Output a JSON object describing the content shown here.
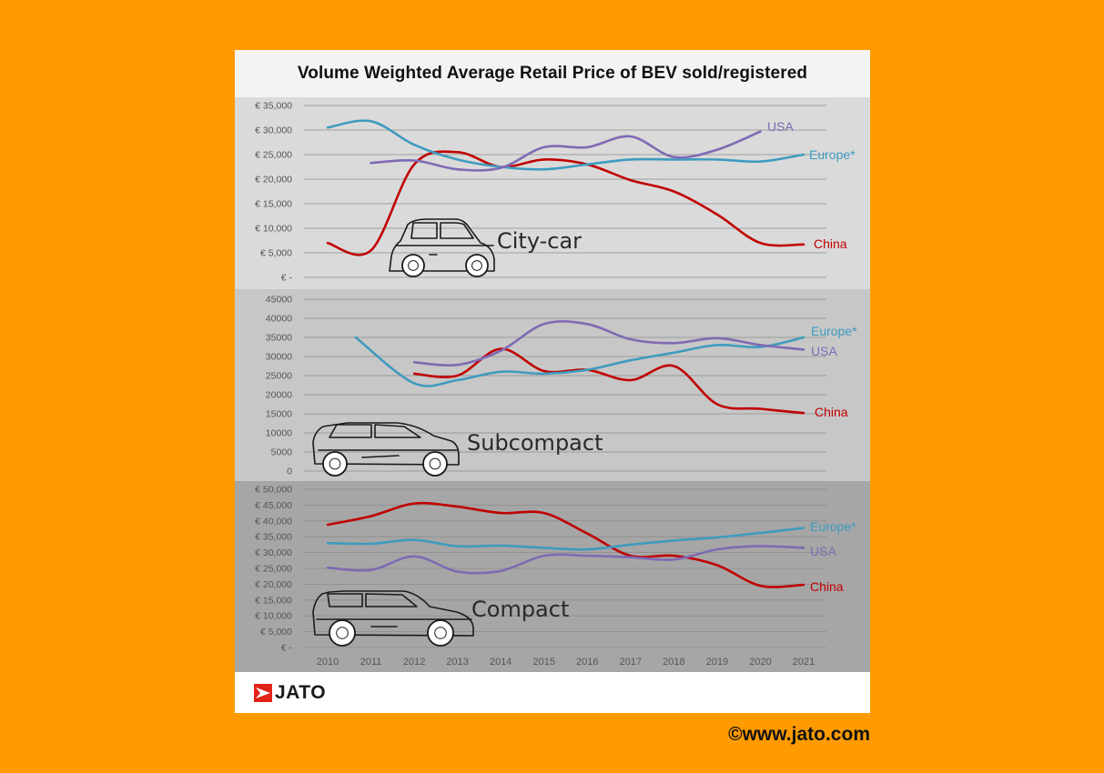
{
  "header": {
    "title": "Volume Weighted Average Retail Price of BEV sold/registered"
  },
  "footer": {
    "brand": "JATO",
    "website": "©www.jato.com"
  },
  "colors": {
    "background": "#ff9b00",
    "china": "#c00000",
    "europe": "#3f9bbf",
    "usa": "#7f6ab4"
  },
  "icons": [
    "jato-logo-icon",
    "city-car-icon",
    "subcompact-car-icon",
    "compact-car-icon"
  ],
  "chart_data": {
    "type": "line",
    "x": [
      2010,
      2011,
      2012,
      2013,
      2014,
      2015,
      2016,
      2017,
      2018,
      2019,
      2020,
      2021
    ],
    "x_tick_labels": [
      "2010",
      "2011",
      "2012",
      "2013",
      "2014",
      "2015",
      "2016",
      "2017",
      "2018",
      "2019",
      "2020",
      "2021"
    ],
    "panels": [
      {
        "segment": "City-car",
        "ylim": [
          0,
          35000
        ],
        "y_ticks": [
          0,
          5000,
          10000,
          15000,
          20000,
          25000,
          30000,
          35000
        ],
        "y_tick_labels": [
          "€ -",
          "€ 5,000",
          "€ 10,000",
          "€ 15,000",
          "€ 20,000",
          "€ 25,000",
          "€ 30,000",
          "€ 35,000"
        ],
        "series": [
          {
            "name": "China",
            "key": "china",
            "x": [
              2010,
              2011,
              2012,
              2013,
              2014,
              2015,
              2016,
              2017,
              2018,
              2019,
              2020,
              2021
            ],
            "values": [
              7000,
              5500,
              23000,
              25500,
              22500,
              24000,
              23000,
              19800,
              17500,
              12800,
              7000,
              6700
            ]
          },
          {
            "name": "Europe*",
            "key": "europe",
            "x": [
              2010,
              2011,
              2012,
              2013,
              2014,
              2015,
              2016,
              2017,
              2018,
              2019,
              2020,
              2021
            ],
            "values": [
              30500,
              31800,
              27000,
              24000,
              22500,
              22000,
              23000,
              24000,
              24000,
              24000,
              23600,
              25000
            ]
          },
          {
            "name": "USA",
            "key": "usa",
            "x": [
              2011,
              2012,
              2013,
              2014,
              2015,
              2016,
              2017,
              2018,
              2019,
              2020
            ],
            "values": [
              23300,
              23800,
              22000,
              22300,
              26500,
              26500,
              28700,
              24500,
              26000,
              29700
            ]
          }
        ]
      },
      {
        "segment": "Subcompact",
        "ylim": [
          0,
          45000
        ],
        "y_ticks": [
          0,
          5000,
          10000,
          15000,
          20000,
          25000,
          30000,
          35000,
          40000,
          45000
        ],
        "y_tick_labels": [
          "0",
          "5000",
          "10000",
          "15000",
          "20000",
          "25000",
          "30000",
          "35000",
          "40000",
          "45000"
        ],
        "series": [
          {
            "name": "China",
            "key": "china",
            "x": [
              2012,
              2013,
              2014,
              2015,
              2016,
              2017,
              2018,
              2019,
              2020,
              2021
            ],
            "values": [
              25500,
              25000,
              32000,
              26200,
              26500,
              23800,
              27500,
              17500,
              16300,
              15200
            ]
          },
          {
            "name": "Europe*",
            "key": "europe",
            "x": [
              2010.65,
              2012,
              2013,
              2014,
              2015,
              2016,
              2017,
              2018,
              2019,
              2020,
              2021
            ],
            "values": [
              35000,
              23000,
              23800,
              26000,
              25500,
              26500,
              29000,
              31000,
              33000,
              32500,
              35000
            ]
          },
          {
            "name": "USA",
            "key": "usa",
            "x": [
              2012,
              2013,
              2014,
              2015,
              2016,
              2017,
              2018,
              2019,
              2020,
              2021
            ],
            "values": [
              28500,
              27800,
              31500,
              38500,
              38500,
              34500,
              33500,
              34800,
              33000,
              31800
            ]
          }
        ]
      },
      {
        "segment": "Compact",
        "ylim": [
          0,
          50000
        ],
        "y_ticks": [
          0,
          5000,
          10000,
          15000,
          20000,
          25000,
          30000,
          35000,
          40000,
          45000,
          50000
        ],
        "y_tick_labels": [
          "€ -",
          "€ 5,000",
          "€ 10,000",
          "€ 15,000",
          "€ 20,000",
          "€ 25,000",
          "€ 30,000",
          "€ 35,000",
          "€ 40,000",
          "€ 45,000",
          "€ 50,000"
        ],
        "series": [
          {
            "name": "China",
            "key": "china",
            "x": [
              2010,
              2011,
              2012,
              2013,
              2014,
              2015,
              2016,
              2017,
              2018,
              2019,
              2020,
              2021
            ],
            "values": [
              38800,
              41500,
              45500,
              44500,
              42500,
              42500,
              36000,
              29000,
              29000,
              26000,
              19500,
              19800
            ]
          },
          {
            "name": "Europe*",
            "key": "europe",
            "x": [
              2010,
              2011,
              2012,
              2013,
              2014,
              2015,
              2016,
              2017,
              2018,
              2019,
              2020,
              2021
            ],
            "values": [
              33000,
              32800,
              34000,
              32000,
              32200,
              31500,
              31000,
              32500,
              33800,
              34800,
              36200,
              37800
            ]
          },
          {
            "name": "USA",
            "key": "usa",
            "x": [
              2010,
              2011,
              2012,
              2013,
              2014,
              2015,
              2016,
              2017,
              2018,
              2019,
              2020,
              2021
            ],
            "values": [
              25200,
              24500,
              28800,
              24000,
              24200,
              29000,
              29000,
              28500,
              27800,
              31000,
              32000,
              31500
            ]
          }
        ]
      }
    ]
  }
}
